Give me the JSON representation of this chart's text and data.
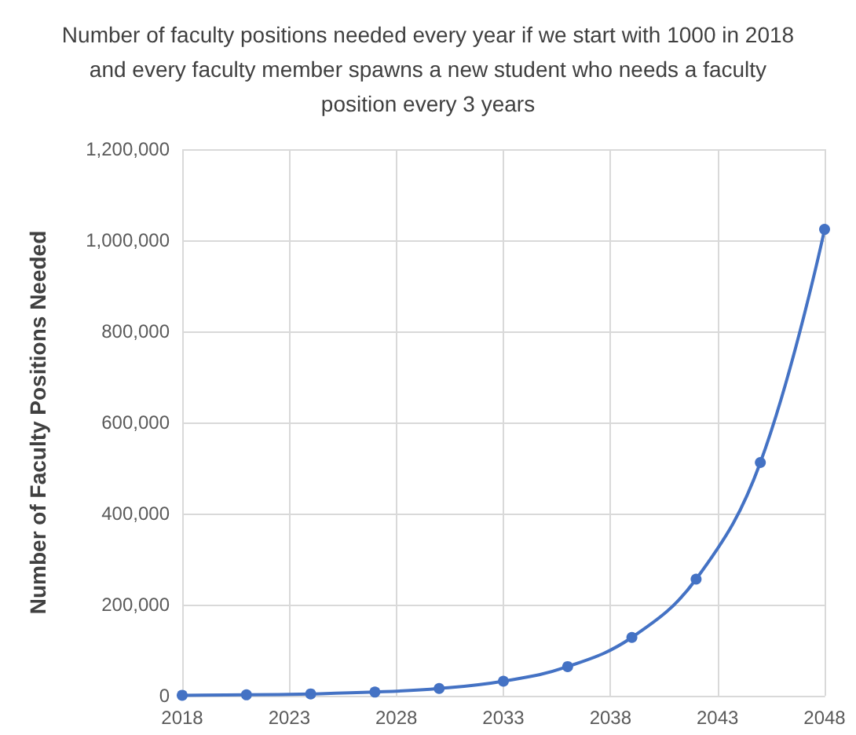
{
  "chart_data": {
    "type": "line",
    "title": "Number of faculty positions needed every year if we start with 1000 in 2018 and every faculty member spawns a new student who needs a faculty position every 3 years",
    "ylabel": "Number of Faculty Positions Needed",
    "x": [
      2018,
      2021,
      2024,
      2027,
      2030,
      2033,
      2036,
      2039,
      2042,
      2045,
      2048
    ],
    "series": [
      {
        "color": "#4472c4",
        "values": [
          1000,
          2000,
          4000,
          8000,
          16000,
          32000,
          64000,
          128000,
          256000,
          512000,
          1024000
        ]
      }
    ],
    "xlim": [
      2018,
      2048
    ],
    "xticks": [
      2018,
      2023,
      2028,
      2033,
      2038,
      2043,
      2048
    ],
    "ylim": [
      0,
      1200000
    ],
    "yticks": [
      {
        "value": 0,
        "label": "0"
      },
      {
        "value": 200000,
        "label": "200,000"
      },
      {
        "value": 400000,
        "label": "400,000"
      },
      {
        "value": 600000,
        "label": "600,000"
      },
      {
        "value": 800000,
        "label": "800,000"
      },
      {
        "value": 1000000,
        "label": "1,000,000"
      },
      {
        "value": 1200000,
        "label": "1,200,000"
      }
    ],
    "grid": true,
    "marker": "circle",
    "line_style": "solid"
  }
}
